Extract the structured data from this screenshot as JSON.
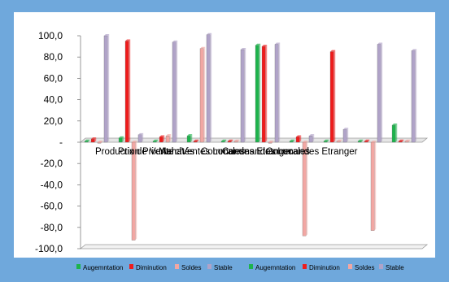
{
  "chart_data": {
    "type": "bar",
    "title": "",
    "xlabel": "",
    "ylabel": "",
    "ylim": [
      -100,
      100
    ],
    "y_ticks": [
      100,
      80,
      60,
      40,
      20,
      0,
      -20,
      -40,
      -60,
      -80,
      -100
    ],
    "y_tick_labels": [
      "100,0",
      "80,0",
      "60,0",
      "40,0",
      "20,0",
      "-",
      "-20,0",
      "-40,0",
      "-60,0",
      "-80,0",
      "-100,0"
    ],
    "categories": [
      "Production",
      "Prix de Vente",
      "Prix Achat",
      "Marchés",
      "Ventes Locales",
      "Commandes Etranger",
      "Commandes Locales",
      "Commandes Etranger"
    ],
    "category_labels": [
      "Production",
      "Prix de Vente",
      "Prix Achat",
      "Marchés",
      "Ventes Locales",
      "Commandes Etranger",
      "Commandes Locales",
      "Commandes Etranger"
    ],
    "series": [
      {
        "name": "Augemntation",
        "color": "#1db34c",
        "values": [
          1,
          4,
          1,
          6,
          1,
          91,
          1,
          1
        ]
      },
      {
        "name": "Diminution",
        "color": "#ee1c1c",
        "values": [
          3,
          95,
          5,
          1,
          1,
          90,
          5,
          85
        ]
      },
      {
        "name": "Soldes",
        "color": "#f2a7a3",
        "values": [
          -1,
          -92,
          6,
          88,
          1,
          -1,
          -88,
          1
        ]
      },
      {
        "name": "Stable",
        "color": "#b0a3c8",
        "values": [
          100,
          7,
          94,
          101,
          87,
          92,
          6,
          12
        ]
      }
    ],
    "extra_series": [
      {
        "name": "Augemntation",
        "color": "#1db34c",
        "values": [
          1,
          16
        ]
      },
      {
        "name": "Diminution",
        "color": "#ee1c1c",
        "values": [
          1,
          1
        ]
      },
      {
        "name": "Soldes",
        "color": "#f2a7a3",
        "values": [
          -83,
          1
        ]
      },
      {
        "name": "Stable",
        "color": "#b0a3c8",
        "values": [
          92,
          86
        ]
      }
    ],
    "legend": [
      "Augemntation",
      "Diminution",
      "Soldes",
      "Stable",
      "Augemntation",
      "Diminution",
      "Soldes",
      "Stable"
    ],
    "legend_position": "bottom",
    "grid": false
  }
}
